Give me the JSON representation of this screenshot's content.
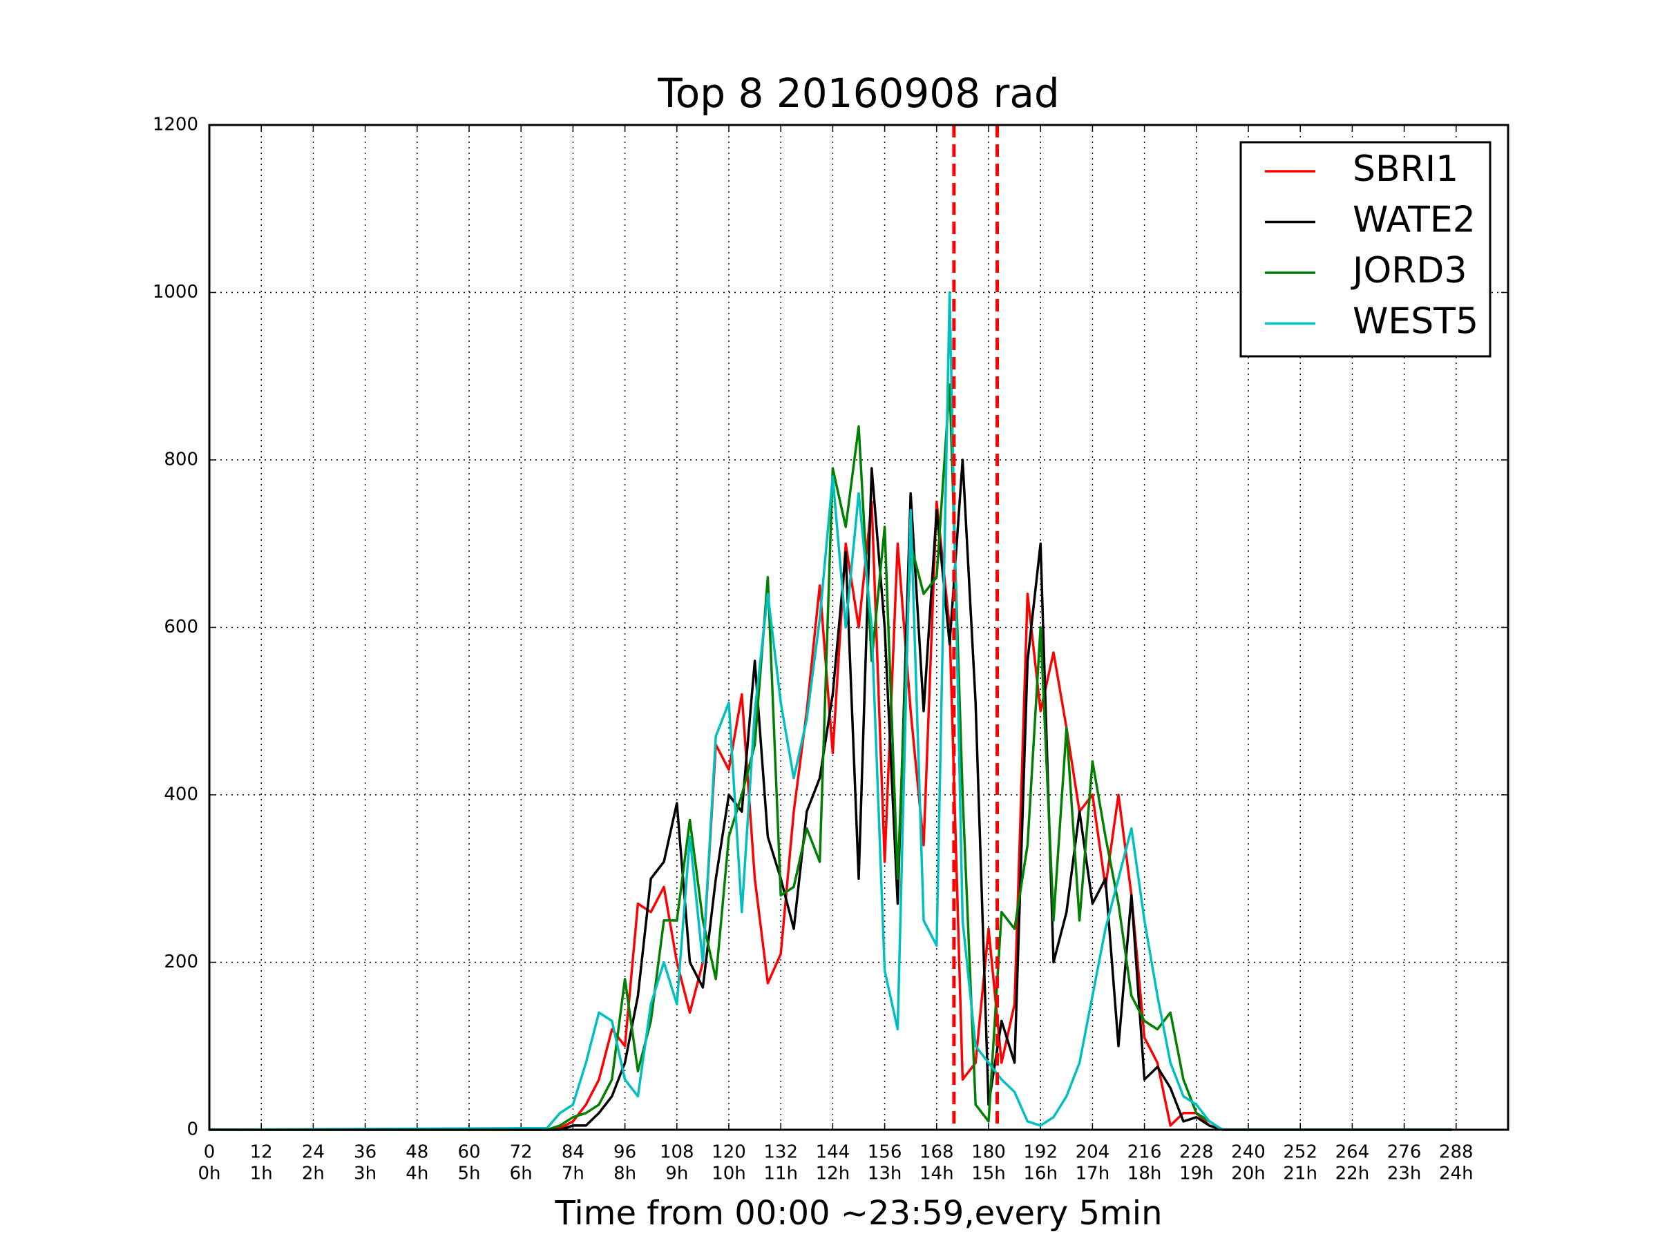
{
  "chart_data": {
    "type": "line",
    "title": "Top 8 20160908 rad",
    "x_label": "Time from 00:00 ~23:59,every 5min",
    "x": [
      0,
      78,
      81,
      84,
      87,
      90,
      93,
      96,
      99,
      102,
      105,
      108,
      111,
      114,
      117,
      120,
      123,
      126,
      129,
      132,
      135,
      138,
      141,
      144,
      147,
      150,
      153,
      156,
      159,
      162,
      165,
      168,
      171,
      174,
      177,
      180,
      183,
      186,
      189,
      192,
      195,
      198,
      201,
      204,
      207,
      210,
      213,
      216,
      219,
      222,
      225,
      228,
      231,
      234,
      287
    ],
    "series": [
      {
        "name": "SBRI1",
        "color": "#ff0000",
        "values": [
          0,
          0,
          2,
          10,
          30,
          60,
          120,
          100,
          270,
          260,
          290,
          200,
          140,
          200,
          460,
          430,
          520,
          300,
          175,
          210,
          380,
          500,
          650,
          450,
          700,
          600,
          750,
          320,
          700,
          500,
          340,
          750,
          600,
          60,
          80,
          240,
          80,
          150,
          640,
          500,
          570,
          480,
          380,
          400,
          290,
          400,
          280,
          110,
          80,
          5,
          20,
          20,
          5,
          0,
          0
        ]
      },
      {
        "name": "WATE2",
        "color": "#000000",
        "values": [
          0,
          0,
          0,
          5,
          5,
          20,
          40,
          80,
          160,
          300,
          320,
          390,
          200,
          170,
          300,
          400,
          380,
          560,
          350,
          300,
          240,
          380,
          420,
          520,
          690,
          300,
          790,
          600,
          270,
          760,
          500,
          740,
          580,
          800,
          510,
          30,
          130,
          80,
          560,
          700,
          200,
          260,
          380,
          270,
          300,
          100,
          280,
          60,
          75,
          50,
          10,
          15,
          5,
          0,
          0
        ]
      },
      {
        "name": "JORD3",
        "color": "#008000",
        "values": [
          0,
          0,
          5,
          15,
          20,
          30,
          60,
          180,
          70,
          130,
          250,
          250,
          370,
          250,
          180,
          350,
          400,
          460,
          660,
          280,
          290,
          360,
          320,
          790,
          720,
          840,
          560,
          720,
          300,
          700,
          640,
          660,
          890,
          400,
          30,
          10,
          260,
          240,
          340,
          600,
          250,
          480,
          250,
          440,
          350,
          270,
          160,
          130,
          120,
          140,
          60,
          20,
          10,
          0,
          0
        ]
      },
      {
        "name": "WEST5",
        "color": "#00bfbf",
        "values": [
          0,
          2,
          20,
          30,
          80,
          140,
          130,
          60,
          40,
          150,
          200,
          150,
          350,
          200,
          470,
          510,
          260,
          500,
          640,
          510,
          420,
          490,
          610,
          780,
          600,
          760,
          600,
          190,
          120,
          740,
          250,
          220,
          1000,
          250,
          100,
          80,
          60,
          45,
          10,
          5,
          15,
          40,
          80,
          160,
          240,
          300,
          360,
          250,
          160,
          80,
          40,
          30,
          10,
          0,
          0
        ]
      }
    ],
    "vlines": [
      172,
      182
    ],
    "vline_color": "#ff0000",
    "xlim": [
      0,
      300
    ],
    "xticks": [
      0,
      12,
      24,
      36,
      48,
      60,
      72,
      84,
      96,
      108,
      120,
      132,
      144,
      156,
      168,
      180,
      192,
      204,
      216,
      228,
      240,
      252,
      264,
      276,
      288
    ],
    "xtick_hours": [
      "0h",
      "1h",
      "2h",
      "3h",
      "4h",
      "5h",
      "6h",
      "7h",
      "8h",
      "9h",
      "10h",
      "11h",
      "12h",
      "13h",
      "14h",
      "15h",
      "16h",
      "17h",
      "18h",
      "19h",
      "20h",
      "21h",
      "22h",
      "23h",
      "24h"
    ],
    "ylim": [
      0,
      1200
    ],
    "yticks": [
      0,
      200,
      400,
      600,
      800,
      1000,
      1200
    ],
    "grid": true,
    "legend": "upper right"
  }
}
